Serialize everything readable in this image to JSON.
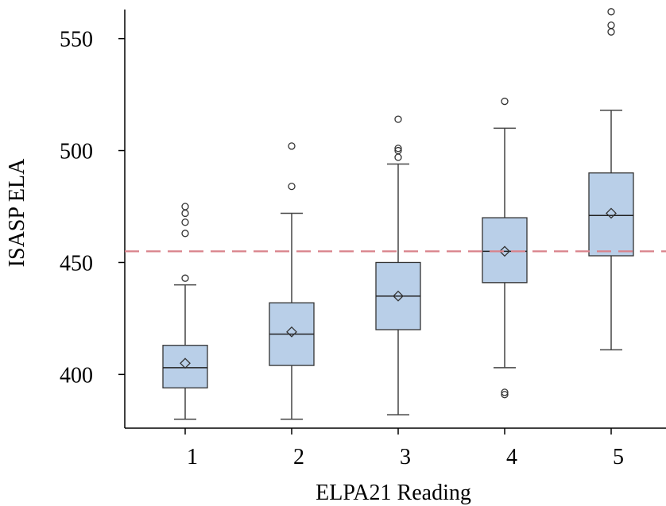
{
  "chart_data": {
    "type": "box",
    "title": "",
    "xlabel": "ELPA21 Reading",
    "ylabel": "ISASP ELA",
    "categories": [
      "1",
      "2",
      "3",
      "4",
      "5"
    ],
    "y_ticks": [
      "400",
      "450",
      "500",
      "550"
    ],
    "ylim": [
      376,
      563
    ],
    "reference_line": {
      "y": 455,
      "style": "dashed",
      "color": "#d9828a"
    },
    "box_color": "#b9cfe8",
    "boxes": [
      {
        "category": "1",
        "whisker_low": 380,
        "q1": 394,
        "median": 403,
        "q3": 413,
        "whisker_high": 440,
        "mean": 405,
        "outliers": [
          443,
          463,
          468,
          472,
          475
        ]
      },
      {
        "category": "2",
        "whisker_low": 380,
        "q1": 404,
        "median": 418,
        "q3": 432,
        "whisker_high": 472,
        "mean": 419,
        "outliers": [
          484,
          502
        ]
      },
      {
        "category": "3",
        "whisker_low": 382,
        "q1": 420,
        "median": 435,
        "q3": 450,
        "whisker_high": 494,
        "mean": 435,
        "outliers": [
          497,
          500,
          501,
          514
        ]
      },
      {
        "category": "4",
        "whisker_low": 403,
        "q1": 441,
        "median": 455,
        "q3": 470,
        "whisker_high": 510,
        "mean": 455,
        "outliers": [
          391,
          392,
          522
        ]
      },
      {
        "category": "5",
        "whisker_low": 411,
        "q1": 453,
        "median": 471,
        "q3": 490,
        "whisker_high": 518,
        "mean": 472,
        "outliers": [
          553,
          556,
          562
        ]
      }
    ]
  }
}
